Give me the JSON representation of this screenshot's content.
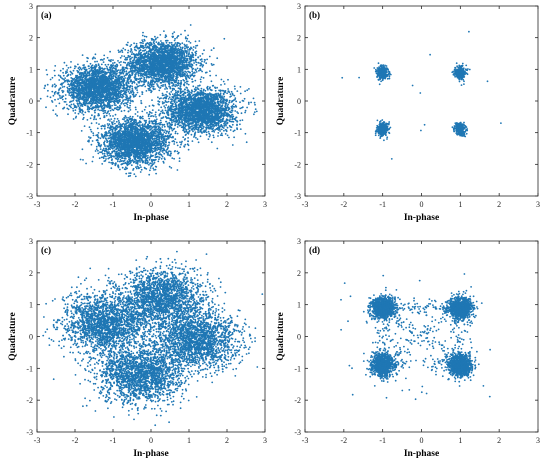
{
  "chart_data": [
    {
      "type": "scatter",
      "panel_label": "(a)",
      "xlabel": "In-phase",
      "ylabel": "Quadrature",
      "xlim": [
        -3,
        3
      ],
      "ylim": [
        -3,
        3
      ],
      "xticks": [
        -3,
        -2,
        -1,
        0,
        1,
        2,
        3
      ],
      "yticks": [
        -3,
        -2,
        -1,
        0,
        1,
        2,
        3
      ],
      "color": "#1f77b4",
      "clusters": [
        {
          "center": [
            0.3,
            1.2
          ],
          "spread": [
            0.45,
            0.35
          ],
          "points": 2400
        },
        {
          "center": [
            -1.4,
            0.4
          ],
          "spread": [
            0.45,
            0.35
          ],
          "points": 2400
        },
        {
          "center": [
            1.3,
            -0.3
          ],
          "spread": [
            0.45,
            0.35
          ],
          "points": 2400
        },
        {
          "center": [
            -0.4,
            -1.3
          ],
          "spread": [
            0.45,
            0.35
          ],
          "points": 2400
        }
      ],
      "outliers": 0
    },
    {
      "type": "scatter",
      "panel_label": "(b)",
      "xlabel": "In-phase",
      "ylabel": "Quadrature",
      "xlim": [
        -3,
        3
      ],
      "ylim": [
        -3,
        3
      ],
      "xticks": [
        -3,
        -2,
        -1,
        0,
        1,
        2,
        3
      ],
      "yticks": [
        -3,
        -2,
        -1,
        0,
        1,
        2,
        3
      ],
      "color": "#1f77b4",
      "clusters": [
        {
          "center": [
            -1,
            0.9
          ],
          "spread": [
            0.07,
            0.1
          ],
          "points": 300
        },
        {
          "center": [
            1,
            0.9
          ],
          "spread": [
            0.07,
            0.1
          ],
          "points": 300
        },
        {
          "center": [
            -1,
            -0.9
          ],
          "spread": [
            0.07,
            0.1
          ],
          "points": 300
        },
        {
          "center": [
            1,
            -0.9
          ],
          "spread": [
            0.07,
            0.1
          ],
          "points": 300
        }
      ],
      "outliers": 12
    },
    {
      "type": "scatter",
      "panel_label": "(c)",
      "xlabel": "In-phase",
      "ylabel": "Quadrature",
      "xlim": [
        -3,
        3
      ],
      "ylim": [
        -3,
        3
      ],
      "xticks": [
        -3,
        -2,
        -1,
        0,
        1,
        2,
        3
      ],
      "yticks": [
        -3,
        -2,
        -1,
        0,
        1,
        2,
        3
      ],
      "color": "#1f77b4",
      "clusters": [
        {
          "center": [
            0.3,
            1.2
          ],
          "spread": [
            0.55,
            0.45
          ],
          "points": 1900
        },
        {
          "center": [
            -1.2,
            0.4
          ],
          "spread": [
            0.55,
            0.45
          ],
          "points": 1900
        },
        {
          "center": [
            1.2,
            -0.1
          ],
          "spread": [
            0.55,
            0.45
          ],
          "points": 1900
        },
        {
          "center": [
            -0.3,
            -1.2
          ],
          "spread": [
            0.55,
            0.45
          ],
          "points": 1900
        }
      ],
      "outliers": 0
    },
    {
      "type": "scatter",
      "panel_label": "(d)",
      "xlabel": "In-phase",
      "ylabel": "Quadrature",
      "xlim": [
        -3,
        3
      ],
      "ylim": [
        -3,
        3
      ],
      "xticks": [
        -3,
        -2,
        -1,
        0,
        1,
        2,
        3
      ],
      "yticks": [
        -3,
        -2,
        -1,
        0,
        1,
        2,
        3
      ],
      "color": "#1f77b4",
      "clusters": [
        {
          "center": [
            -1,
            0.9
          ],
          "spread": [
            0.15,
            0.17
          ],
          "points": 900
        },
        {
          "center": [
            1,
            0.9
          ],
          "spread": [
            0.15,
            0.17
          ],
          "points": 900
        },
        {
          "center": [
            -1,
            -0.9
          ],
          "spread": [
            0.15,
            0.17
          ],
          "points": 900
        },
        {
          "center": [
            1,
            -0.9
          ],
          "spread": [
            0.15,
            0.17
          ],
          "points": 900
        }
      ],
      "bridges": 600,
      "outliers": 45
    }
  ]
}
